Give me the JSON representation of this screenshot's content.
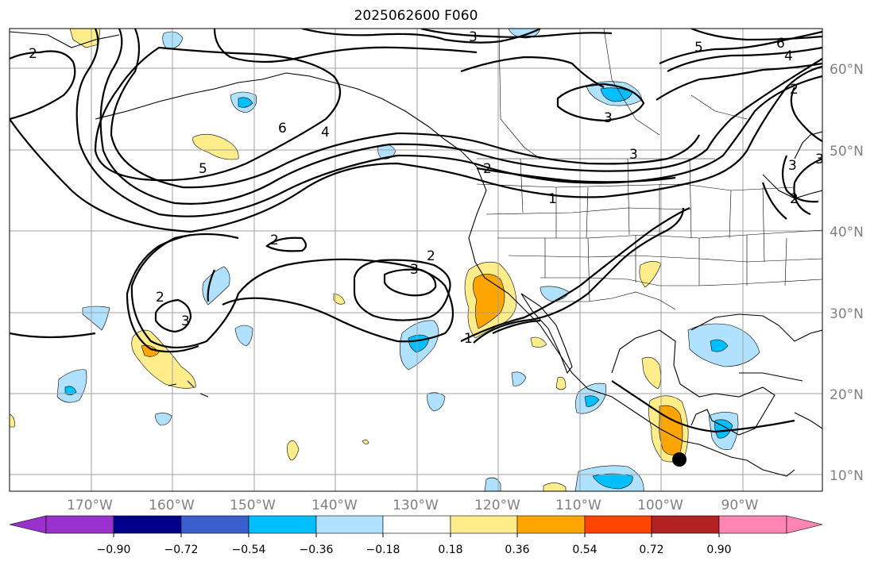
{
  "title": "2025062600 F060",
  "map": {
    "projection": "cylindrical",
    "lon_labels": [
      "170°W",
      "160°W",
      "150°W",
      "140°W",
      "130°W",
      "120°W",
      "110°W",
      "100°W",
      "90°W"
    ],
    "lat_labels": [
      "60°N",
      "50°N",
      "40°N",
      "30°N",
      "20°N",
      "10°N"
    ],
    "contour_labels": [
      "2",
      "3",
      "5",
      "6",
      "4",
      "2",
      "6",
      "4",
      "5",
      "3",
      "3",
      "3",
      "2",
      "1",
      "2",
      "3",
      "2",
      "2",
      "3",
      "1",
      "3",
      "2"
    ],
    "marker": "storm-center-dot"
  },
  "colorbar": {
    "ticks": [
      "−0.90",
      "−0.72",
      "−0.54",
      "−0.36",
      "−0.18",
      "0.18",
      "0.36",
      "0.54",
      "0.72",
      "0.90"
    ],
    "colors": [
      "#9932cc",
      "#00008b",
      "#3a5fcd",
      "#00bfff",
      "#b0e2ff",
      "#ffffff",
      "#ffec8b",
      "#ffa500",
      "#ff4500",
      "#b22222",
      "#ff86b4"
    ]
  }
}
